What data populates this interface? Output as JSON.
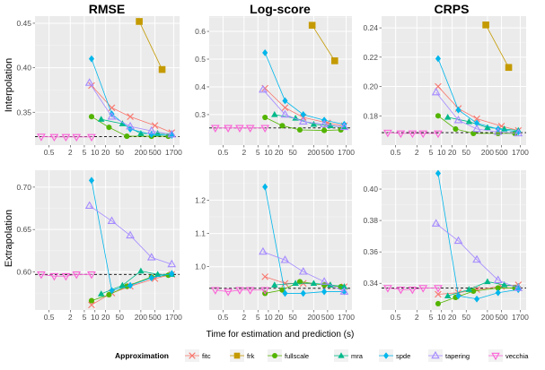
{
  "x_axis_label": "Time for estimation and prediction (s)",
  "row_labels": [
    "Interpolation",
    "Extrapolation"
  ],
  "column_titles": [
    "RMSE",
    "Log-score",
    "CRPS"
  ],
  "legend": {
    "title": "Approximation",
    "items": [
      {
        "key": "fitc",
        "label": "fitc",
        "color": "#f8766d",
        "marker": "x-cross"
      },
      {
        "key": "frk",
        "label": "frk",
        "color": "#c49a00",
        "marker": "square"
      },
      {
        "key": "fullscale",
        "label": "fullscale",
        "color": "#53b400",
        "marker": "circle"
      },
      {
        "key": "mra",
        "label": "mra",
        "color": "#00b98a",
        "marker": "triangle"
      },
      {
        "key": "spde",
        "label": "spde",
        "color": "#00b6eb",
        "marker": "diamond"
      },
      {
        "key": "tapering",
        "label": "tapering",
        "color": "#a58aff",
        "marker": "triangle-open"
      },
      {
        "key": "vecchia",
        "label": "vecchia",
        "color": "#fb61d7",
        "marker": "triangle-down-open"
      }
    ]
  },
  "chart_data": [
    {
      "type": "line",
      "row": "Interpolation",
      "title": "RMSE",
      "xscale": "log10",
      "xticks": [
        0.5,
        2,
        5,
        10,
        20,
        50,
        200,
        500,
        1700
      ],
      "xtick_labels": [
        "0.5",
        "2",
        "5",
        "10",
        "20",
        "50",
        "200",
        "500",
        "1700"
      ],
      "ylim": [
        0.313,
        0.458
      ],
      "yticks": [
        0.35,
        0.4,
        0.45
      ],
      "ytick_labels": [
        "0.35",
        "0.40",
        "0.45"
      ],
      "reference_line": 0.3225,
      "series": [
        {
          "name": "fitc",
          "x": [
            8,
            30,
            100,
            500,
            1500
          ],
          "y": [
            0.38,
            0.355,
            0.345,
            0.335,
            0.327
          ]
        },
        {
          "name": "frk",
          "x": [
            180,
            800
          ],
          "y": [
            0.452,
            0.398
          ]
        },
        {
          "name": "fullscale",
          "x": [
            8,
            25,
            80,
            400,
            1200
          ],
          "y": [
            0.345,
            0.333,
            0.323,
            0.323,
            0.323
          ]
        },
        {
          "name": "mra",
          "x": [
            15,
            60,
            200,
            600,
            1500
          ],
          "y": [
            0.342,
            0.337,
            0.326,
            0.326,
            0.326
          ]
        },
        {
          "name": "spde",
          "x": [
            8,
            30,
            100,
            400,
            1500
          ],
          "y": [
            0.41,
            0.348,
            0.331,
            0.325,
            0.324
          ]
        },
        {
          "name": "tapering",
          "x": [
            7,
            30,
            100,
            400,
            1500
          ],
          "y": [
            0.383,
            0.345,
            0.334,
            0.329,
            0.325
          ]
        },
        {
          "name": "vecchia",
          "x": [
            0.3,
            0.7,
            1.5,
            3,
            8
          ],
          "y": [
            0.3225,
            0.3222,
            0.3222,
            0.3222,
            0.3222
          ]
        }
      ]
    },
    {
      "type": "line",
      "row": "Interpolation",
      "title": "Log-score",
      "xscale": "log10",
      "xticks": [
        0.5,
        2,
        5,
        10,
        20,
        50,
        200,
        500,
        1700
      ],
      "xtick_labels": [
        "0.5",
        "2",
        "5",
        "10",
        "20",
        "50",
        "200",
        "500",
        "1700"
      ],
      "ylim": [
        0.19,
        0.655
      ],
      "yticks": [
        0.3,
        0.4,
        0.5,
        0.6
      ],
      "ytick_labels": [
        "0.3",
        "0.4",
        "0.5",
        "0.6"
      ],
      "reference_line": 0.252,
      "series": [
        {
          "name": "fitc",
          "x": [
            8,
            30,
            100,
            500,
            1500
          ],
          "y": [
            0.395,
            0.325,
            0.29,
            0.27,
            0.26
          ]
        },
        {
          "name": "frk",
          "x": [
            180,
            800
          ],
          "y": [
            0.622,
            0.494
          ]
        },
        {
          "name": "fullscale",
          "x": [
            8,
            25,
            80,
            400,
            1200
          ],
          "y": [
            0.29,
            0.26,
            0.245,
            0.243,
            0.245
          ]
        },
        {
          "name": "mra",
          "x": [
            15,
            60,
            200,
            600,
            1500
          ],
          "y": [
            0.3,
            0.287,
            0.265,
            0.26,
            0.256
          ]
        },
        {
          "name": "spde",
          "x": [
            8,
            30,
            100,
            400,
            1500
          ],
          "y": [
            0.523,
            0.35,
            0.3,
            0.28,
            0.265
          ]
        },
        {
          "name": "tapering",
          "x": [
            7,
            30,
            100,
            400,
            1500
          ],
          "y": [
            0.39,
            0.3,
            0.275,
            0.265,
            0.255
          ]
        },
        {
          "name": "vecchia",
          "x": [
            0.3,
            0.7,
            1.5,
            3,
            8
          ],
          "y": [
            0.252,
            0.252,
            0.252,
            0.252,
            0.252
          ]
        }
      ]
    },
    {
      "type": "line",
      "row": "Interpolation",
      "title": "CRPS",
      "xscale": "log10",
      "xticks": [
        0.5,
        2,
        5,
        10,
        20,
        50,
        200,
        500,
        1700
      ],
      "xtick_labels": [
        "0.5",
        "2",
        "5",
        "10",
        "20",
        "50",
        "200",
        "500",
        "1700"
      ],
      "ylim": [
        0.16,
        0.248
      ],
      "yticks": [
        0.18,
        0.2,
        0.22,
        0.24
      ],
      "ytick_labels": [
        "0.18",
        "0.20",
        "0.22",
        "0.24"
      ],
      "reference_line": 0.1685,
      "series": [
        {
          "name": "fitc",
          "x": [
            8,
            30,
            100,
            500,
            1500
          ],
          "y": [
            0.2,
            0.185,
            0.178,
            0.173,
            0.17
          ]
        },
        {
          "name": "frk",
          "x": [
            180,
            800
          ],
          "y": [
            0.242,
            0.213
          ]
        },
        {
          "name": "fullscale",
          "x": [
            8,
            25,
            80,
            400,
            1200
          ],
          "y": [
            0.18,
            0.171,
            0.168,
            0.168,
            0.168
          ]
        },
        {
          "name": "mra",
          "x": [
            15,
            60,
            200,
            600,
            1500
          ],
          "y": [
            0.179,
            0.176,
            0.172,
            0.171,
            0.17
          ]
        },
        {
          "name": "spde",
          "x": [
            8,
            30,
            100,
            400,
            1500
          ],
          "y": [
            0.219,
            0.184,
            0.175,
            0.171,
            0.169
          ]
        },
        {
          "name": "tapering",
          "x": [
            7,
            30,
            100,
            400,
            1500
          ],
          "y": [
            0.196,
            0.177,
            0.171,
            0.169,
            0.168
          ]
        },
        {
          "name": "vecchia",
          "x": [
            0.3,
            0.7,
            1.5,
            3,
            8
          ],
          "y": [
            0.1685,
            0.168,
            0.168,
            0.168,
            0.168
          ]
        }
      ]
    },
    {
      "type": "line",
      "row": "Extrapolation",
      "title": "RMSE",
      "xscale": "log10",
      "xticks": [
        0.5,
        2,
        5,
        10,
        20,
        50,
        200,
        500,
        1700
      ],
      "xtick_labels": [
        "0.5",
        "2",
        "5",
        "10",
        "20",
        "50",
        "200",
        "500",
        "1700"
      ],
      "ylim": [
        0.555,
        0.72
      ],
      "yticks": [
        0.6,
        0.65,
        0.7
      ],
      "ytick_labels": [
        "0.60",
        "0.65",
        "0.70"
      ],
      "reference_line": 0.597,
      "series": [
        {
          "name": "fitc",
          "x": [
            8,
            30,
            100,
            500,
            1500
          ],
          "y": [
            0.561,
            0.575,
            0.583,
            0.592,
            0.597
          ]
        },
        {
          "name": "fullscale",
          "x": [
            8,
            25,
            80,
            400,
            1200
          ],
          "y": [
            0.566,
            0.573,
            0.583,
            0.594,
            0.596
          ]
        },
        {
          "name": "mra",
          "x": [
            15,
            60,
            200,
            600,
            1500
          ],
          "y": [
            0.574,
            0.584,
            0.601,
            0.597,
            0.597
          ]
        },
        {
          "name": "spde",
          "x": [
            8,
            30,
            100,
            400,
            1500
          ],
          "y": [
            0.708,
            0.578,
            0.584,
            0.593,
            0.598
          ]
        },
        {
          "name": "tapering",
          "x": [
            7,
            30,
            100,
            400,
            1500
          ],
          "y": [
            0.678,
            0.66,
            0.643,
            0.617,
            0.609
          ]
        },
        {
          "name": "vecchia",
          "x": [
            0.3,
            0.7,
            1.5,
            3,
            8
          ],
          "y": [
            0.597,
            0.595,
            0.595,
            0.597,
            0.597
          ]
        }
      ]
    },
    {
      "type": "line",
      "row": "Extrapolation",
      "title": "Log-score",
      "xscale": "log10",
      "xticks": [
        0.5,
        2,
        5,
        10,
        20,
        50,
        200,
        500,
        1700
      ],
      "xtick_labels": [
        "0.5",
        "2",
        "5",
        "10",
        "20",
        "50",
        "200",
        "500",
        "1700"
      ],
      "ylim": [
        0.87,
        1.29
      ],
      "yticks": [
        1.0,
        1.1,
        1.2
      ],
      "ytick_labels": [
        "1.0",
        "1.1",
        "1.2"
      ],
      "reference_line": 0.935,
      "series": [
        {
          "name": "fitc",
          "x": [
            8,
            30,
            100,
            500,
            1500
          ],
          "y": [
            0.97,
            0.95,
            0.95,
            0.945,
            0.94
          ]
        },
        {
          "name": "fullscale",
          "x": [
            8,
            25,
            80,
            400,
            1200
          ],
          "y": [
            0.92,
            0.93,
            0.955,
            0.945,
            0.94
          ]
        },
        {
          "name": "mra",
          "x": [
            15,
            60,
            200,
            600,
            1500
          ],
          "y": [
            0.945,
            0.95,
            0.95,
            0.945,
            0.94
          ]
        },
        {
          "name": "spde",
          "x": [
            8,
            30,
            100,
            400,
            1500
          ],
          "y": [
            1.24,
            0.92,
            0.92,
            0.925,
            0.925
          ]
        },
        {
          "name": "tapering",
          "x": [
            7,
            30,
            100,
            400,
            1500
          ],
          "y": [
            1.045,
            1.02,
            0.985,
            0.955,
            0.925
          ]
        },
        {
          "name": "vecchia",
          "x": [
            0.3,
            0.7,
            1.5,
            3,
            8
          ],
          "y": [
            0.93,
            0.925,
            0.93,
            0.93,
            0.93
          ]
        }
      ]
    },
    {
      "type": "line",
      "row": "Extrapolation",
      "title": "CRPS",
      "xscale": "log10",
      "xticks": [
        0.5,
        2,
        5,
        10,
        20,
        50,
        200,
        500,
        1700
      ],
      "xtick_labels": [
        "0.5",
        "2",
        "5",
        "10",
        "20",
        "50",
        "200",
        "500",
        "1700"
      ],
      "ylim": [
        0.323,
        0.412
      ],
      "yticks": [
        0.34,
        0.36,
        0.38,
        0.4
      ],
      "ytick_labels": [
        "0.34",
        "0.36",
        "0.38",
        "0.40"
      ],
      "reference_line": 0.337,
      "series": [
        {
          "name": "fitc",
          "x": [
            8,
            30,
            100,
            500,
            1500
          ],
          "y": [
            0.333,
            0.334,
            0.336,
            0.338,
            0.339
          ]
        },
        {
          "name": "fullscale",
          "x": [
            8,
            25,
            80,
            400,
            1200
          ],
          "y": [
            0.327,
            0.331,
            0.335,
            0.337,
            0.337
          ]
        },
        {
          "name": "mra",
          "x": [
            15,
            60,
            200,
            600,
            1500
          ],
          "y": [
            0.332,
            0.336,
            0.341,
            0.339,
            0.338
          ]
        },
        {
          "name": "spde",
          "x": [
            8,
            30,
            100,
            400,
            1500
          ],
          "y": [
            0.41,
            0.332,
            0.33,
            0.334,
            0.336
          ]
        },
        {
          "name": "tapering",
          "x": [
            7,
            30,
            100,
            400,
            1500
          ],
          "y": [
            0.378,
            0.367,
            0.355,
            0.342,
            0.337
          ]
        },
        {
          "name": "vecchia",
          "x": [
            0.3,
            0.7,
            1.5,
            3,
            8
          ],
          "y": [
            0.337,
            0.336,
            0.336,
            0.337,
            0.337
          ]
        }
      ]
    }
  ]
}
